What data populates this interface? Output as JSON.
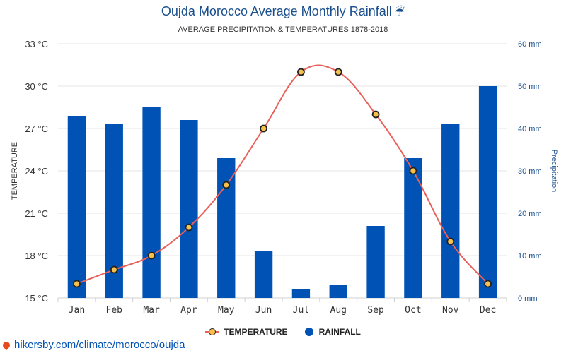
{
  "header": {
    "title": "Oujda Morocco Average Monthly Rainfall",
    "title_icon": "umbrella-rain-icon",
    "subtitle": "AVERAGE PRECIPITATION & TEMPERATURES 1878-2018"
  },
  "legend": {
    "temperature_label": "TEMPERATURE",
    "rainfall_label": "RAINFALL"
  },
  "source": {
    "text": "hikersby.com/climate/morocco/oujda",
    "icon": "location-pin-icon"
  },
  "colors": {
    "bar": "#0052b4",
    "line": "#e8605a",
    "marker_fill": "#f5c04d",
    "marker_stroke": "#222222",
    "title": "#1a4f8e",
    "right_axis": "#1a4f8e"
  },
  "chart_data": {
    "type": "bar",
    "categories": [
      "Jan",
      "Feb",
      "Mar",
      "Apr",
      "May",
      "Jun",
      "Jul",
      "Aug",
      "Sep",
      "Oct",
      "Nov",
      "Dec"
    ],
    "series": [
      {
        "name": "RAINFALL",
        "type": "bar",
        "axis": "right",
        "unit": "mm",
        "values": [
          43,
          41,
          45,
          42,
          33,
          11,
          2,
          3,
          17,
          33,
          41,
          50
        ]
      },
      {
        "name": "TEMPERATURE",
        "type": "line",
        "axis": "left",
        "unit": "°C",
        "values": [
          16,
          17,
          18,
          20,
          23,
          27,
          31,
          31,
          28,
          24,
          19,
          16
        ]
      }
    ],
    "left_axis": {
      "label": "TEMPERATURE",
      "ticks": [
        "15 °C",
        "18 °C",
        "21 °C",
        "24 °C",
        "27 °C",
        "30 °C",
        "33 °C"
      ],
      "range": [
        15,
        33
      ]
    },
    "right_axis": {
      "label": "Precipitation",
      "ticks": [
        "0 mm",
        "10 mm",
        "20 mm",
        "30 mm",
        "40 mm",
        "50 mm",
        "60 mm"
      ],
      "range": [
        0,
        60
      ]
    },
    "grid": true,
    "legend_position": "bottom"
  }
}
